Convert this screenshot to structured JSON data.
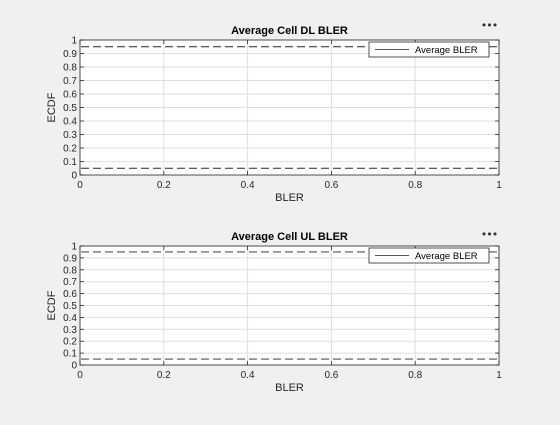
{
  "chart_data": [
    {
      "type": "line",
      "title": "Average Cell DL BLER",
      "xlabel": "BLER",
      "ylabel": "ECDF",
      "xlim": [
        0,
        1
      ],
      "ylim": [
        0,
        1
      ],
      "x_ticks": [
        "0",
        "0.2",
        "0.4",
        "0.6",
        "0.8",
        "1"
      ],
      "y_ticks": [
        "0",
        "0.1",
        "0.2",
        "0.3",
        "0.4",
        "0.5",
        "0.6",
        "0.7",
        "0.8",
        "0.9",
        "1"
      ],
      "grid": true,
      "legend_position": "top-right",
      "series": [
        {
          "name": "Average BLER",
          "x": [],
          "y": [],
          "color": "#0072bd"
        }
      ],
      "reference_lines": [
        {
          "y": 0.05,
          "style": "dashed",
          "color": "#262626"
        },
        {
          "y": 0.95,
          "style": "dashed",
          "color": "#262626"
        }
      ]
    },
    {
      "type": "line",
      "title": "Average Cell UL BLER",
      "xlabel": "BLER",
      "ylabel": "ECDF",
      "xlim": [
        0,
        1
      ],
      "ylim": [
        0,
        1
      ],
      "x_ticks": [
        "0",
        "0.2",
        "0.4",
        "0.6",
        "0.8",
        "1"
      ],
      "y_ticks": [
        "0",
        "0.1",
        "0.2",
        "0.3",
        "0.4",
        "0.5",
        "0.6",
        "0.7",
        "0.8",
        "0.9",
        "1"
      ],
      "grid": true,
      "legend_position": "top-right",
      "series": [
        {
          "name": "Average BLER",
          "x": [],
          "y": [],
          "color": "#0072bd"
        }
      ],
      "reference_lines": [
        {
          "y": 0.05,
          "style": "dashed",
          "color": "#262626"
        },
        {
          "y": 0.95,
          "style": "dashed",
          "color": "#262626"
        }
      ]
    }
  ],
  "toolbar": {
    "more_icon": "ellipsis-icon",
    "more_glyph": "•••"
  },
  "colors": {
    "axes_bg": "#ffffff",
    "figure_bg": "#f0f0f0",
    "grid": "#dfdfdf",
    "axis": "#262626"
  }
}
